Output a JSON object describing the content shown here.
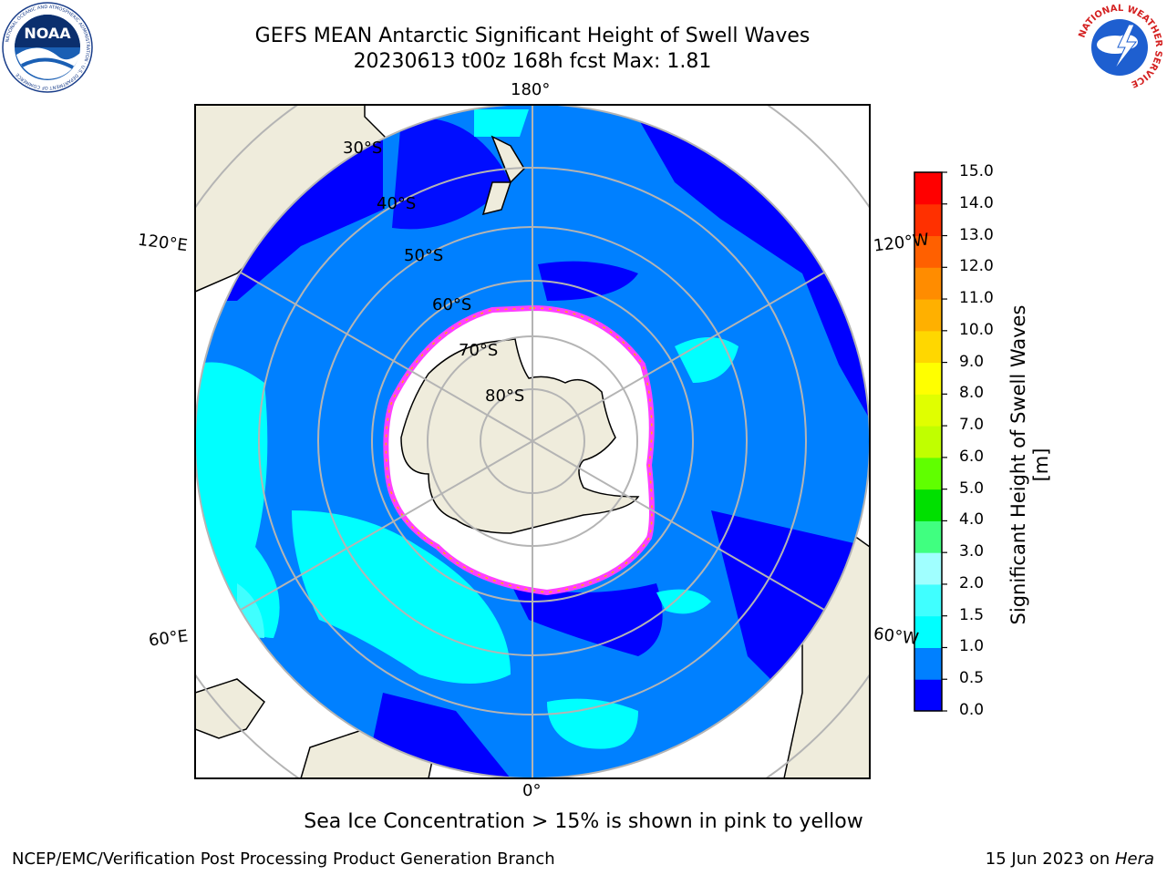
{
  "header": {
    "title_line1": "GEFS MEAN Antarctic Significant Height of Swell Waves",
    "title_line2": "20230613 t00z 168h fcst   Max: 1.81"
  },
  "logos": {
    "left": {
      "icon": "noaa-logo",
      "text": "NOAA",
      "ring_text": "NATIONAL OCEANIC AND ATMOSPHERIC ADMINISTRATION · U.S. DEPARTMENT OF COMMERCE"
    },
    "right": {
      "icon": "nws-logo",
      "ring_text": "NATIONAL WEATHER SERVICE"
    }
  },
  "map": {
    "projection": "south polar stereographic",
    "longitude_labels": {
      "top": "180°",
      "bottom": "0°",
      "upper_left": "120°E",
      "upper_right": "120°W",
      "lower_left": "60°E",
      "lower_right": "60°W"
    },
    "latitude_labels": [
      "30°S",
      "40°S",
      "50°S",
      "60°S",
      "70°S",
      "80°S"
    ],
    "colors": {
      "land": "#efecdc",
      "ocean_low": "#0000ff",
      "ocean_mid": "#0080ff",
      "ocean_high": "#00ffff",
      "sea_ice": "#ffffff",
      "ice_edge": "#ff40ff",
      "grid": "#b4b4b4"
    }
  },
  "colorbar": {
    "label": "Significant Height of Swell Waves [m]",
    "ticks": [
      "0.0",
      "0.5",
      "1.0",
      "1.5",
      "2.0",
      "3.0",
      "4.0",
      "5.0",
      "6.0",
      "7.0",
      "8.0",
      "9.0",
      "10.0",
      "11.0",
      "12.0",
      "13.0",
      "14.0",
      "15.0"
    ],
    "colors": [
      "#0000ff",
      "#0080ff",
      "#00ffff",
      "#40ffff",
      "#a0ffff",
      "#40ff80",
      "#00e000",
      "#60ff00",
      "#c0ff00",
      "#e0ff00",
      "#ffff00",
      "#ffd700",
      "#ffb000",
      "#ff8c00",
      "#ff6000",
      "#ff3000",
      "#ff0000"
    ]
  },
  "caption": "Sea Ice Concentration > 15% is shown in pink to yellow",
  "footer": {
    "left": "NCEP/EMC/Verification Post Processing Product Generation Branch",
    "right_prefix": "15 Jun 2023 on ",
    "right_host": "Hera"
  }
}
